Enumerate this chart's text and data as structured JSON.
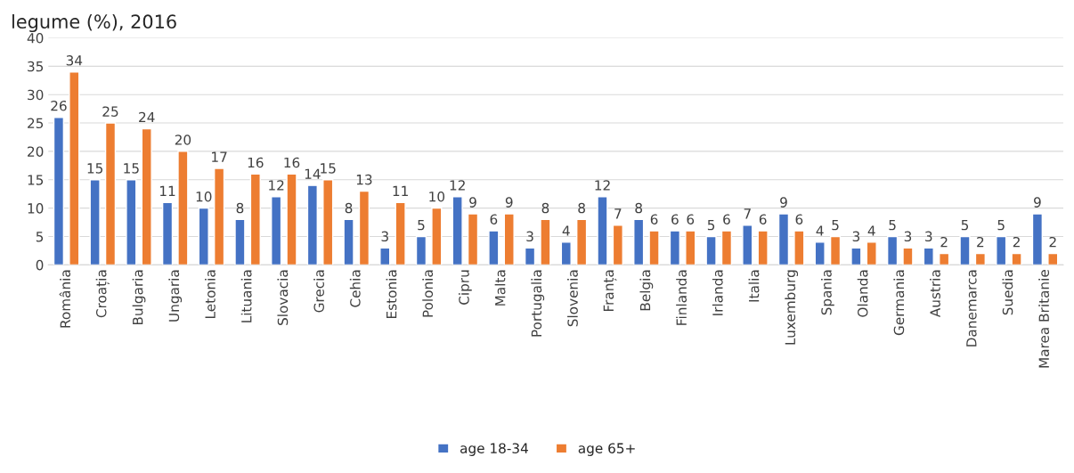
{
  "chart_data": {
    "type": "bar",
    "title": "legume (%), 2016",
    "categories": [
      "România",
      "Croația",
      "Bulgaria",
      "Ungaria",
      "Letonia",
      "Lituania",
      "Slovacia",
      "Grecia",
      "Cehia",
      "Estonia",
      "Polonia",
      "Cipru",
      "Malta",
      "Portugalia",
      "Slovenia",
      "Franța",
      "Belgia",
      "Finlanda",
      "Irlanda",
      "Italia",
      "Luxemburg",
      "Spania",
      "Olanda",
      "Germania",
      "Austria",
      "Danemarca",
      "Suedia",
      "Marea Britanie"
    ],
    "series": [
      {
        "name": "age 18-34",
        "color": "#4472c4",
        "values": [
          26,
          15,
          15,
          11,
          10,
          8,
          12,
          14,
          8,
          3,
          5,
          12,
          6,
          3,
          4,
          12,
          8,
          6,
          5,
          7,
          9,
          4,
          3,
          5,
          3,
          5,
          5,
          9
        ]
      },
      {
        "name": "age 65+",
        "color": "#ed7d31",
        "values": [
          34,
          25,
          24,
          20,
          17,
          16,
          16,
          15,
          13,
          11,
          10,
          9,
          9,
          8,
          8,
          7,
          6,
          6,
          6,
          6,
          6,
          5,
          4,
          3,
          2,
          2,
          2,
          2
        ]
      }
    ],
    "ylim": [
      0,
      40
    ],
    "yticks": [
      0,
      5,
      10,
      15,
      20,
      25,
      30,
      35,
      40
    ],
    "grid": "y",
    "legend": "bottom",
    "data_labels": true
  }
}
